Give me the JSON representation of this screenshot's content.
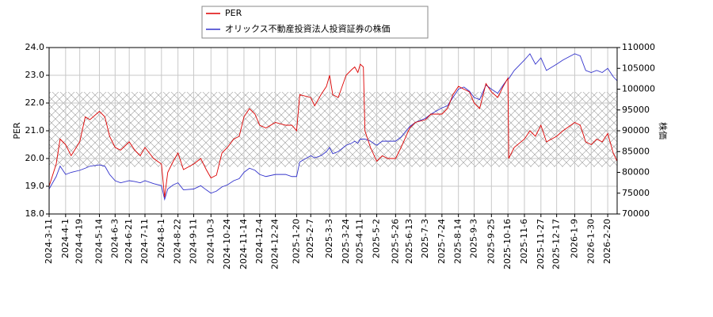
{
  "chart_data": {
    "type": "line",
    "x": [
      "2024-3-11",
      "2024-3-20",
      "2024-3-25",
      "2024-4-1",
      "2024-4-8",
      "2024-4-19",
      "2024-4-26",
      "2024-5-2",
      "2024-5-14",
      "2024-5-21",
      "2024-5-27",
      "2024-6-3",
      "2024-6-10",
      "2024-6-21",
      "2024-6-28",
      "2024-7-5",
      "2024-7-11",
      "2024-7-22",
      "2024-8-1",
      "2024-8-5",
      "2024-8-9",
      "2024-8-16",
      "2024-8-22",
      "2024-8-29",
      "2024-9-11",
      "2024-9-20",
      "2024-9-27",
      "2024-10-3",
      "2024-10-10",
      "2024-10-17",
      "2024-10-24",
      "2024-11-1",
      "2024-11-8",
      "2024-11-14",
      "2024-11-21",
      "2024-11-28",
      "2024-12-4",
      "2024-12-12",
      "2024-12-24",
      "2025-1-6",
      "2025-1-14",
      "2025-1-20",
      "2025-1-24",
      "2025-2-7",
      "2025-2-12",
      "2025-2-20",
      "2025-2-27",
      "2025-3-3",
      "2025-3-7",
      "2025-3-14",
      "2025-3-24",
      "2025-3-31",
      "2025-4-4",
      "2025-4-8",
      "2025-4-11",
      "2025-4-15",
      "2025-4-17",
      "2025-4-24",
      "2025-5-2",
      "2025-5-9",
      "2025-5-16",
      "2025-5-26",
      "2025-6-2",
      "2025-6-13",
      "2025-6-20",
      "2025-7-3",
      "2025-7-10",
      "2025-7-24",
      "2025-7-31",
      "2025-8-7",
      "2025-8-14",
      "2025-8-21",
      "2025-8-28",
      "2025-9-3",
      "2025-9-10",
      "2025-9-18",
      "2025-9-25",
      "2025-10-3",
      "2025-10-10",
      "2025-10-16",
      "2025-10-17",
      "2025-10-24",
      "2025-11-6",
      "2025-11-13",
      "2025-11-20",
      "2025-11-27",
      "2025-12-4",
      "2025-12-17",
      "2025-12-25",
      "2026-1-9",
      "2026-1-16",
      "2026-1-23",
      "2026-1-30",
      "2026-2-6",
      "2026-2-13",
      "2026-2-20",
      "2026-2-27",
      "2026-3-4"
    ],
    "series": [
      {
        "name": "PER",
        "color": "#dd0000",
        "values": [
          19.0,
          19.8,
          20.7,
          20.5,
          20.1,
          20.6,
          21.5,
          21.4,
          21.7,
          21.5,
          20.8,
          20.4,
          20.3,
          20.6,
          20.3,
          20.1,
          20.4,
          20.0,
          19.8,
          18.6,
          19.5,
          19.9,
          20.2,
          19.6,
          19.8,
          20.0,
          19.6,
          19.3,
          19.4,
          20.2,
          20.4,
          20.7,
          20.8,
          21.5,
          21.8,
          21.6,
          21.2,
          21.1,
          21.3,
          21.2,
          21.2,
          21.0,
          22.3,
          22.2,
          21.9,
          22.3,
          22.6,
          23.0,
          22.3,
          22.2,
          23.0,
          23.2,
          23.3,
          23.1,
          23.4,
          23.3,
          21.0,
          20.4,
          19.9,
          20.1,
          20.0,
          20.0,
          20.4,
          21.1,
          21.3,
          21.4,
          21.6,
          21.6,
          21.8,
          22.3,
          22.6,
          22.5,
          22.4,
          22.0,
          21.8,
          22.7,
          22.4,
          22.2,
          22.6,
          22.9,
          20.0,
          20.4,
          20.7,
          21.0,
          20.8,
          21.2,
          20.6,
          20.8,
          21.0,
          21.3,
          21.2,
          20.6,
          20.5,
          20.7,
          20.6,
          20.9,
          20.2,
          19.9
        ]
      },
      {
        "name": "オリックス不動産投資法人投資証券の株価",
        "color": "#3333cc",
        "axis": "y2",
        "values": [
          76000,
          79000,
          81500,
          79500,
          80000,
          80500,
          81000,
          81500,
          81800,
          81500,
          79500,
          78000,
          77500,
          78000,
          77800,
          77500,
          78000,
          77300,
          76800,
          73500,
          76000,
          77000,
          77500,
          75800,
          76000,
          76800,
          75800,
          75000,
          75500,
          76500,
          77000,
          78000,
          78500,
          80000,
          81000,
          80500,
          79500,
          79000,
          79500,
          79500,
          79000,
          79000,
          82500,
          84000,
          83500,
          84000,
          85000,
          86000,
          84500,
          85000,
          86500,
          87000,
          87500,
          87000,
          88000,
          88000,
          88000,
          87500,
          86500,
          87500,
          87500,
          87500,
          88500,
          91000,
          92000,
          93000,
          94000,
          95500,
          96000,
          98000,
          100000,
          100500,
          99500,
          98000,
          97500,
          101000,
          100000,
          99000,
          101000,
          102500,
          102500,
          104500,
          107000,
          108500,
          106000,
          107500,
          104500,
          106000,
          107000,
          108500,
          108000,
          104500,
          104000,
          104500,
          104000,
          105000,
          103000,
          102000
        ]
      }
    ],
    "ylabel": "PER",
    "y2label": "株価",
    "xlim": [
      "2024-3-11",
      "2026-3-4"
    ],
    "xticks": [
      "2024-3-11",
      "2024-4-1",
      "2024-4-19",
      "2024-5-14",
      "2024-6-3",
      "2024-6-21",
      "2024-7-11",
      "2024-8-1",
      "2024-8-22",
      "2024-9-11",
      "2024-10-3",
      "2024-10-24",
      "2024-11-14",
      "2024-12-4",
      "2024-12-24",
      "2025-1-20",
      "2025-2-7",
      "2025-3-3",
      "2025-3-24",
      "2025-4-11",
      "2025-5-2",
      "2025-5-26",
      "2025-6-13",
      "2025-7-3",
      "2025-7-24",
      "2025-8-14",
      "2025-9-3",
      "2025-9-25",
      "2025-10-16",
      "2025-11-6",
      "2025-11-27",
      "2025-12-17",
      "2026-1-9",
      "2026-1-30",
      "2026-2-20"
    ],
    "ylim": [
      18,
      24
    ],
    "yticks": [
      {
        "value": 18,
        "label": "18.0"
      },
      {
        "value": 19,
        "label": "19.0"
      },
      {
        "value": 20,
        "label": "20.0"
      },
      {
        "value": 21,
        "label": "21.0"
      },
      {
        "value": 22,
        "label": "22.0"
      },
      {
        "value": 23,
        "label": "23.0"
      },
      {
        "value": 24,
        "label": "24.0"
      }
    ],
    "y2lim": [
      70000,
      110000
    ],
    "y2ticks": [
      70000,
      75000,
      80000,
      85000,
      90000,
      95000,
      100000,
      105000,
      110000
    ],
    "shaded_range": [
      19.7,
      22.4
    ],
    "grid": true,
    "legend": "top"
  }
}
